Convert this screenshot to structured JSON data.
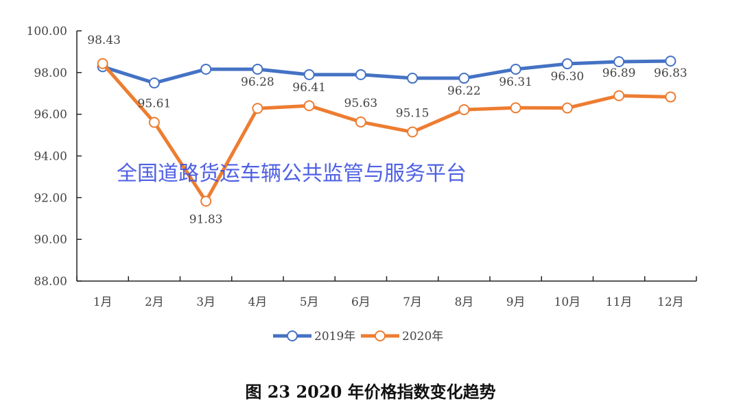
{
  "chart_data": {
    "type": "line",
    "categories": [
      "1月",
      "2月",
      "3月",
      "4月",
      "5月",
      "6月",
      "7月",
      "8月",
      "9月",
      "10月",
      "11月",
      "12月"
    ],
    "ylim": [
      88,
      100
    ],
    "yticks": [
      "88.00",
      "90.00",
      "92.00",
      "94.00",
      "96.00",
      "98.00",
      "100.00"
    ],
    "grid": false,
    "legend": "bottom",
    "series": [
      {
        "name": "2019年",
        "color": "#4472c4",
        "values": [
          98.28,
          97.5,
          98.16,
          98.16,
          97.9,
          97.9,
          97.73,
          97.73,
          98.16,
          98.42,
          98.52,
          98.55
        ],
        "labels": [
          "",
          "",
          "",
          "",
          "",
          "",
          "",
          "",
          "",
          "",
          "",
          ""
        ]
      },
      {
        "name": "2020年",
        "color": "#ed7d31",
        "values": [
          98.43,
          95.61,
          91.83,
          96.28,
          96.41,
          95.63,
          95.15,
          96.22,
          96.31,
          96.3,
          96.89,
          96.83
        ],
        "labels": [
          "98.43",
          "95.61",
          "91.83",
          "96.28",
          "96.41",
          "95.63",
          "95.15",
          "96.22",
          "96.31",
          "96.30",
          "96.89",
          "96.83"
        ]
      }
    ]
  },
  "watermark": "全国道路货运车辆公共监管与服务平台",
  "caption": "图 23  2020 年价格指数变化趋势"
}
